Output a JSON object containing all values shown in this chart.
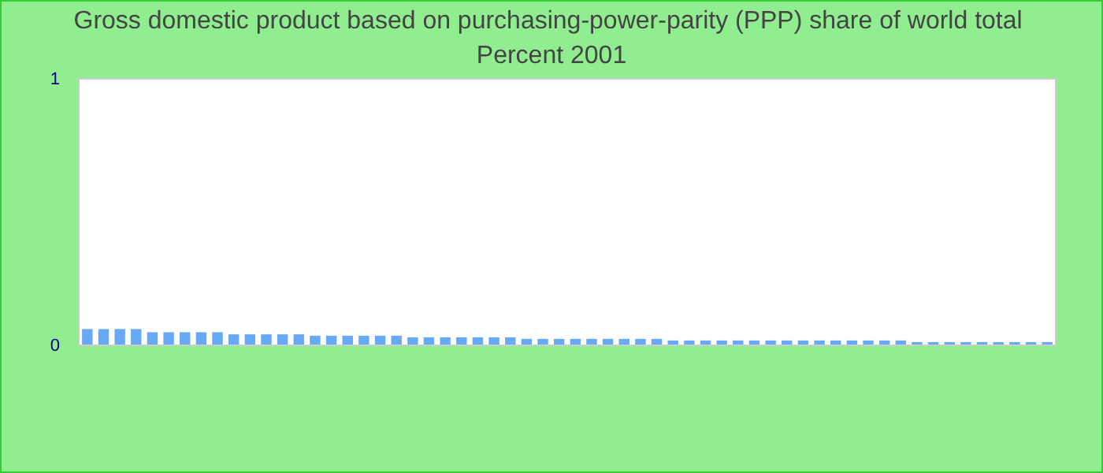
{
  "chart_data": {
    "type": "bar",
    "title": "Gross domestic product based on purchasing-power-parity (PPP) share of world total  Percent 2001",
    "categories": [
      null,
      null,
      null,
      null,
      null,
      null,
      null,
      null,
      null,
      null,
      null,
      null,
      null,
      null,
      null,
      null,
      null,
      null,
      null,
      null,
      null,
      null,
      null,
      null,
      null,
      null,
      null,
      null,
      null,
      null,
      null,
      null,
      null,
      null,
      null,
      null,
      null,
      null,
      null,
      null,
      null,
      null,
      null,
      null,
      null,
      null,
      null,
      null,
      null,
      null,
      null,
      null,
      null,
      null,
      null,
      null,
      null,
      null,
      null,
      null
    ],
    "values": [
      0.061,
      0.061,
      0.061,
      0.061,
      0.049,
      0.049,
      0.049,
      0.049,
      0.049,
      0.041,
      0.041,
      0.041,
      0.041,
      0.041,
      0.036,
      0.036,
      0.036,
      0.036,
      0.036,
      0.036,
      0.03,
      0.03,
      0.03,
      0.03,
      0.03,
      0.03,
      0.03,
      0.024,
      0.024,
      0.024,
      0.024,
      0.024,
      0.024,
      0.024,
      0.024,
      0.024,
      0.018,
      0.018,
      0.018,
      0.018,
      0.018,
      0.018,
      0.018,
      0.018,
      0.018,
      0.018,
      0.018,
      0.018,
      0.018,
      0.018,
      0.018,
      0.012,
      0.012,
      0.012,
      0.012,
      0.012,
      0.012,
      0.012,
      0.012,
      0.012
    ],
    "color": "#66aaf5",
    "ylim": [
      0,
      1
    ],
    "yticks": [
      0,
      1
    ],
    "grid": false
  }
}
